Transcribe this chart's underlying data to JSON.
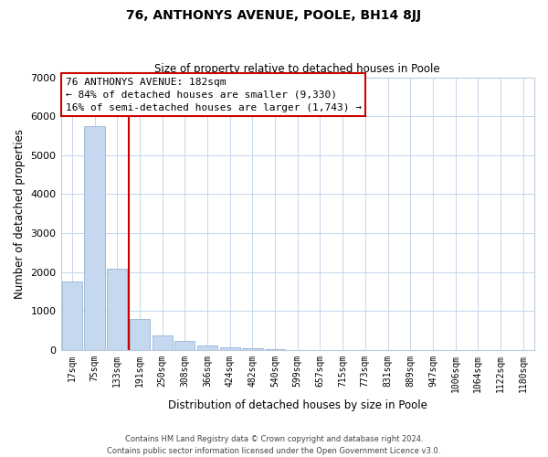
{
  "title": "76, ANTHONYS AVENUE, POOLE, BH14 8JJ",
  "subtitle": "Size of property relative to detached houses in Poole",
  "xlabel": "Distribution of detached houses by size in Poole",
  "ylabel": "Number of detached properties",
  "bar_labels": [
    "17sqm",
    "75sqm",
    "133sqm",
    "191sqm",
    "250sqm",
    "308sqm",
    "366sqm",
    "424sqm",
    "482sqm",
    "540sqm",
    "599sqm",
    "657sqm",
    "715sqm",
    "773sqm",
    "831sqm",
    "889sqm",
    "947sqm",
    "1006sqm",
    "1064sqm",
    "1122sqm",
    "1180sqm"
  ],
  "bar_values": [
    1750,
    5750,
    2075,
    800,
    375,
    225,
    100,
    60,
    30,
    10,
    0,
    0,
    0,
    0,
    0,
    0,
    0,
    0,
    0,
    0,
    0
  ],
  "bar_color": "#c5d8f0",
  "bar_edge_color": "#96b4d4",
  "vline_x": 2.5,
  "vline_color": "#cc0000",
  "ylim": [
    0,
    7000
  ],
  "annotation_title": "76 ANTHONYS AVENUE: 182sqm",
  "annotation_line1": "← 84% of detached houses are smaller (9,330)",
  "annotation_line2": "16% of semi-detached houses are larger (1,743) →",
  "footer_line1": "Contains HM Land Registry data © Crown copyright and database right 2024.",
  "footer_line2": "Contains public sector information licensed under the Open Government Licence v3.0.",
  "background_color": "#ffffff",
  "grid_color": "#c5d5eb"
}
